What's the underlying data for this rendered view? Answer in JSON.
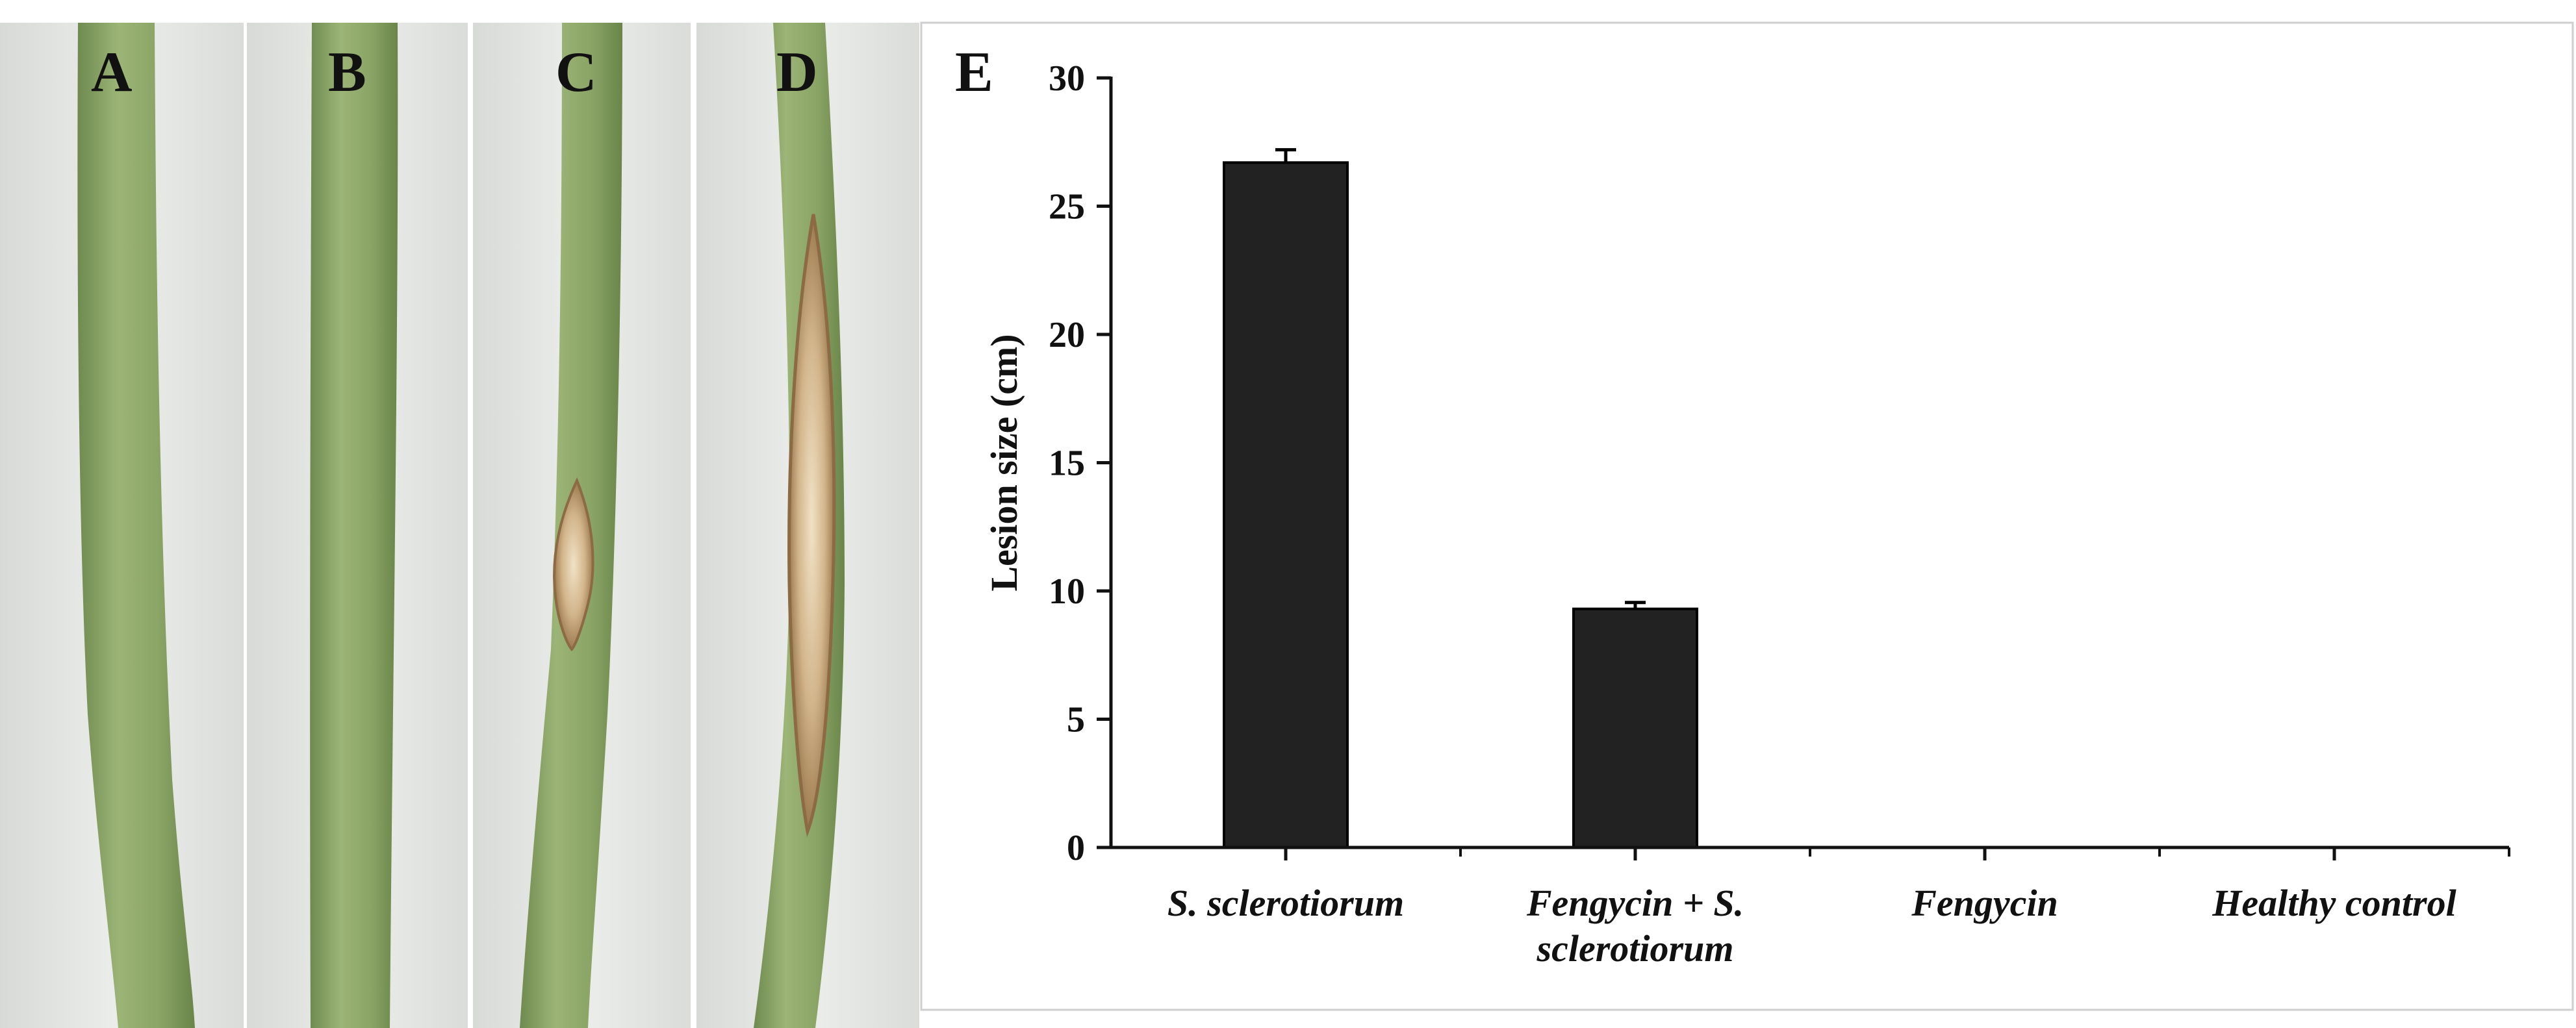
{
  "panels": {
    "a": "A",
    "b": "B",
    "c": "C",
    "d": "D",
    "e": "E"
  },
  "colors": {
    "stem": "#8fa86a",
    "stem_shadow": "#6f8a4f",
    "background_photo": "#e6e8e4",
    "lesion": "#c7a77e",
    "bar": "#222222"
  },
  "chart_data": {
    "type": "bar",
    "title": "",
    "xlabel": "",
    "ylabel": "Lesion size (cm)",
    "ylim": [
      0,
      30
    ],
    "yticks": [
      0,
      5,
      10,
      15,
      20,
      25,
      30
    ],
    "categories": [
      [
        "S. sclerotiorum"
      ],
      [
        "Fengycin + S.",
        "sclerotiorum"
      ],
      [
        "Fengycin"
      ],
      [
        "Healthy control"
      ]
    ],
    "values": [
      26.7,
      9.3,
      0,
      0
    ],
    "errors": [
      0.5,
      0.25,
      0,
      0
    ],
    "grid": false,
    "legend": "none"
  }
}
